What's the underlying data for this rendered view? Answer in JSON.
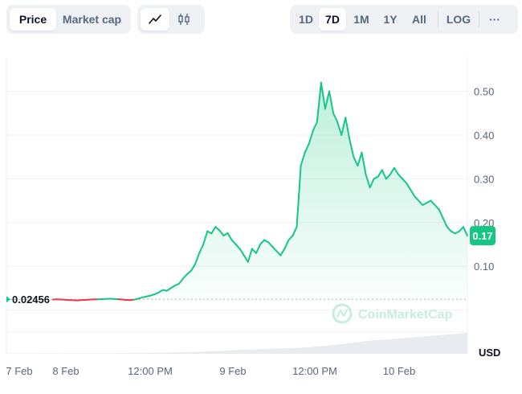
{
  "toolbar": {
    "metric_tabs": [
      {
        "label": "Price",
        "active": true
      },
      {
        "label": "Market cap",
        "active": false
      }
    ],
    "chart_type_icons": [
      {
        "icon": "line-chart-icon",
        "active": true
      },
      {
        "icon": "candlestick-icon",
        "active": false
      }
    ],
    "range_tabs": [
      {
        "label": "1D",
        "active": false
      },
      {
        "label": "7D",
        "active": true
      },
      {
        "label": "1M",
        "active": false
      },
      {
        "label": "1Y",
        "active": false
      },
      {
        "label": "All",
        "active": false
      }
    ],
    "log_label": "LOG",
    "more_label": "···"
  },
  "colors": {
    "up": "#16c784",
    "down": "#ea3943",
    "grid": "#eff2f5",
    "axis_text": "#58667e",
    "volume": "#e8ecf1"
  },
  "watermark": "CoinMarketCap",
  "chart_data": {
    "type": "line",
    "y_axis_label": "USD",
    "y_ticks": [
      0.1,
      0.2,
      0.3,
      0.4,
      0.5
    ],
    "y_tick_labels": [
      "0.10",
      "0.20",
      "0.30",
      "0.40",
      "0.50"
    ],
    "ylim": [
      -0.1,
      0.58
    ],
    "x_ticks": [
      "7 Feb",
      "8 Feb",
      "12:00 PM",
      "9 Feb",
      "12:00 PM",
      "10 Feb"
    ],
    "start_label": "0.02456",
    "current_label": "0.17",
    "baseline": 0.02456,
    "series": [
      {
        "values": [
          0.024,
          0.0245,
          0.024,
          0.0235,
          0.023,
          0.0225,
          0.022,
          0.0228,
          0.0232,
          0.0238,
          0.0242,
          0.0245,
          0.025,
          0.0255,
          0.026,
          0.0252,
          0.0248,
          0.024,
          0.0232,
          0.0226,
          0.0238,
          0.026,
          0.029,
          0.031,
          0.033,
          0.036,
          0.04,
          0.046,
          0.044,
          0.05,
          0.056,
          0.06,
          0.072,
          0.082,
          0.09,
          0.105,
          0.13,
          0.15,
          0.18,
          0.175,
          0.19,
          0.182,
          0.17,
          0.176,
          0.16,
          0.15,
          0.14,
          0.125,
          0.11,
          0.14,
          0.13,
          0.15,
          0.16,
          0.155,
          0.145,
          0.135,
          0.125,
          0.14,
          0.16,
          0.17,
          0.19,
          0.33,
          0.36,
          0.38,
          0.41,
          0.43,
          0.52,
          0.46,
          0.5,
          0.45,
          0.43,
          0.4,
          0.44,
          0.39,
          0.35,
          0.33,
          0.36,
          0.31,
          0.28,
          0.3,
          0.305,
          0.32,
          0.3,
          0.31,
          0.325,
          0.31,
          0.3,
          0.29,
          0.275,
          0.26,
          0.25,
          0.24,
          0.245,
          0.25,
          0.24,
          0.23,
          0.21,
          0.19,
          0.18,
          0.175,
          0.18,
          0.19,
          0.17
        ]
      }
    ],
    "volume": [
      0.01,
      0.012,
      0.01,
      0.011,
      0.012,
      0.013,
      0.015,
      0.02,
      0.03,
      0.04,
      0.06,
      0.08,
      0.1,
      0.12,
      0.14,
      0.16,
      0.2,
      0.26,
      0.32,
      0.36,
      0.4,
      0.44,
      0.48,
      0.52
    ]
  }
}
